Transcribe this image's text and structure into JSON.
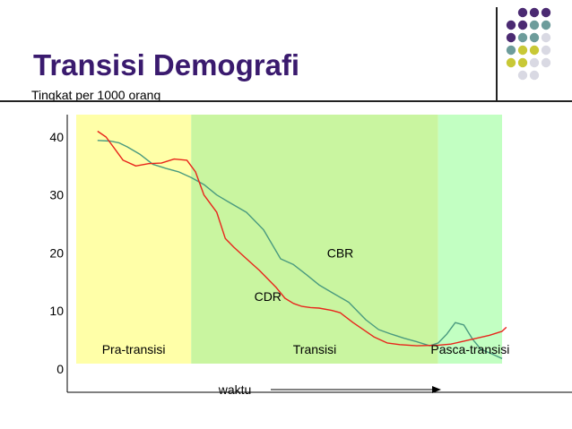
{
  "slide": {
    "title": "Transisi Demografi",
    "subtitle": "Tingkat per 1000 orang"
  },
  "decoration": {
    "dot_grid_colors": [
      "#4b2a72",
      "#6d9c9b",
      "#c8c836",
      "#d9d9e3"
    ]
  },
  "chart_data": {
    "type": "line",
    "title": "",
    "xlabel": "waktu",
    "ylabel": "",
    "ylim": [
      0,
      42
    ],
    "yticks": [
      0,
      10,
      20,
      30,
      40
    ],
    "xlim": [
      0,
      100
    ],
    "regions": [
      {
        "name": "Pra-transisi",
        "from": 0,
        "to": 27,
        "color": "#ffffa8"
      },
      {
        "name": "Transisi",
        "from": 27,
        "to": 85,
        "color": "#c9f5a0"
      },
      {
        "name": "Pasca-transisi",
        "from": 85,
        "to": 100,
        "color": "#c2ffc2"
      }
    ],
    "series": [
      {
        "name": "CBR",
        "color": "#4a9a7f",
        "x": [
          5,
          8,
          10,
          12,
          15,
          18,
          21,
          24,
          27,
          30,
          33,
          36,
          40,
          44,
          48,
          51,
          54,
          57,
          60,
          64,
          68,
          71,
          74,
          77,
          80,
          83,
          85,
          87,
          89,
          91,
          93,
          95,
          97,
          100
        ],
        "y": [
          39.4,
          39.3,
          39.0,
          38.3,
          37.0,
          35.3,
          34.6,
          34.0,
          33.0,
          31.8,
          30.0,
          28.7,
          27.0,
          24.0,
          19.0,
          18.0,
          16.3,
          14.5,
          13.2,
          11.5,
          8.5,
          6.8,
          6.0,
          5.3,
          4.7,
          4.0,
          4.5,
          6.0,
          8.0,
          7.6,
          5.2,
          3.4,
          2.8,
          1.8
        ]
      },
      {
        "name": "CDR",
        "color": "#e8251c",
        "x": [
          5,
          7,
          9,
          11,
          14,
          17,
          20,
          23,
          26,
          28,
          30,
          33,
          35,
          37,
          40,
          43,
          47,
          49,
          51,
          53,
          55,
          57,
          60,
          62,
          65,
          67,
          70,
          73,
          76,
          80,
          85,
          88,
          91,
          94,
          97,
          100,
          101
        ],
        "y": [
          41.0,
          40.0,
          38.0,
          36.0,
          35.0,
          35.4,
          35.5,
          36.2,
          36.0,
          34.0,
          30.0,
          27.0,
          22.5,
          21.0,
          19.0,
          17.0,
          14.0,
          12.2,
          11.3,
          10.8,
          10.6,
          10.5,
          10.1,
          9.7,
          8.0,
          7.0,
          5.5,
          4.5,
          4.2,
          4.0,
          4.1,
          4.3,
          4.8,
          5.3,
          5.8,
          6.5,
          7.2
        ]
      }
    ],
    "annotations": [
      {
        "text": "CBR",
        "x": 62,
        "y": 20
      },
      {
        "text": "CDR",
        "x": 45,
        "y": 12.5
      }
    ]
  }
}
